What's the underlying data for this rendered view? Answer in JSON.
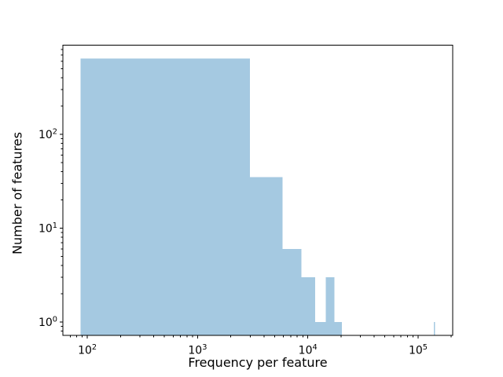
{
  "figure": {
    "title": "",
    "background_color": "#ffffff"
  },
  "chart_data": {
    "type": "bar",
    "subtype": "histogram",
    "title": "",
    "xlabel": "Frequency per feature",
    "ylabel": "Number of features",
    "x_scale": "log",
    "y_scale": "log",
    "xlim": [
      60,
      206000
    ],
    "ylim": [
      0.72,
      890
    ],
    "x_tick_labels": [
      "10^2",
      "10^3",
      "10^4",
      "10^5"
    ],
    "y_tick_labels": [
      "10^0",
      "10^1",
      "10^2"
    ],
    "grid": false,
    "legend": null,
    "bar_color": "#a5c9e1",
    "spine_color": "#000000",
    "approx_bin_width": 2896,
    "bars": [
      {
        "x0": 87,
        "x1": 2983,
        "count": 645
      },
      {
        "x0": 2983,
        "x1": 5879,
        "count": 35
      },
      {
        "x0": 5879,
        "x1": 8775,
        "count": 6
      },
      {
        "x0": 8775,
        "x1": 11671,
        "count": 3
      },
      {
        "x0": 11671,
        "x1": 14567,
        "count": 1
      },
      {
        "x0": 14567,
        "x1": 17463,
        "count": 3
      },
      {
        "x0": 17463,
        "x1": 20359,
        "count": 1
      },
      {
        "x0": 139095,
        "x1": 141991,
        "count": 1
      }
    ]
  }
}
